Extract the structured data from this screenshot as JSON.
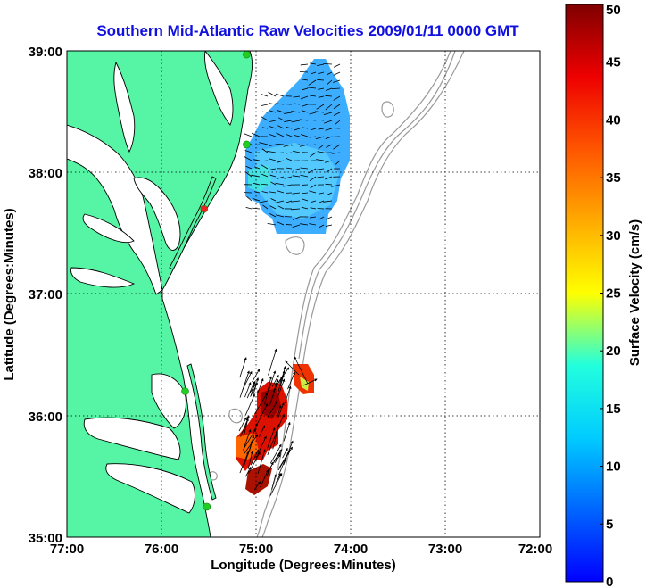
{
  "map": {
    "title": "Southern Mid-Atlantic Raw Velocities 2009/01/11 0000 GMT",
    "xlabel": "Longitude (Degrees:Minutes)",
    "ylabel": "Latitude (Degrees:Minutes)",
    "colors": {
      "title": "#1010e0",
      "land": "#55f5a5",
      "background": "#ffffff",
      "bathymetry": "#999999",
      "coast": "#000000",
      "grid": "#000000"
    },
    "x_ticks": [
      "77:00",
      "76:00",
      "75:00",
      "74:00",
      "73:00",
      "72:00"
    ],
    "y_ticks": [
      "39:00",
      "38:00",
      "37:00",
      "36:00",
      "35:00"
    ],
    "xlim": [
      -77,
      -72
    ],
    "ylim": [
      35,
      39
    ],
    "grid": true
  },
  "colorbar": {
    "label": "Surface Velocity (cm/s)",
    "ticks": [
      "0",
      "5",
      "10",
      "15",
      "20",
      "25",
      "30",
      "35",
      "40",
      "45",
      "50"
    ],
    "range": [
      0,
      50
    ],
    "colormap": "jet"
  },
  "chart_data": {
    "type": "heatmap",
    "title": "Southern Mid-Atlantic Raw Velocities 2009/01/11 0000 GMT",
    "xlabel": "Longitude (Degrees:Minutes)",
    "ylabel": "Latitude (Degrees:Minutes)",
    "x_ticks": [
      "77:00",
      "76:00",
      "75:00",
      "74:00",
      "73:00",
      "72:00"
    ],
    "y_ticks": [
      "39:00",
      "38:00",
      "37:00",
      "36:00",
      "35:00"
    ],
    "color_range_cm_s": [
      0,
      50
    ],
    "regions": [
      {
        "region": "north",
        "lon_range": [
          -75.1,
          -74.0
        ],
        "lat_range": [
          37.5,
          38.95
        ],
        "speed_cm_s_approx": [
          4,
          12
        ]
      },
      {
        "region": "south",
        "lon_range": [
          -75.25,
          -74.3
        ],
        "lat_range": [
          35.4,
          36.4
        ],
        "speed_cm_s_approx": [
          35,
          50
        ]
      }
    ],
    "stations": [
      {
        "lon": -75.1,
        "lat": 38.97,
        "color": "#22cc22"
      },
      {
        "lon": -75.1,
        "lat": 38.23,
        "color": "#22cc22"
      },
      {
        "lon": -75.55,
        "lat": 37.7,
        "color": "#ee2222"
      },
      {
        "lon": -75.75,
        "lat": 36.2,
        "color": "#22cc22"
      },
      {
        "lon": -75.52,
        "lat": 35.25,
        "color": "#22cc22"
      }
    ]
  }
}
